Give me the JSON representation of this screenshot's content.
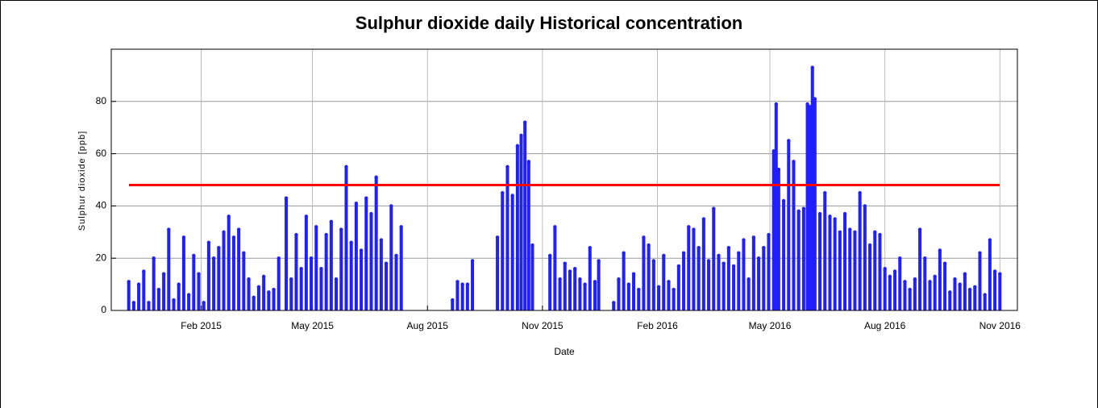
{
  "chart_data": {
    "type": "stem",
    "title": "Sulphur dioxide daily Historical concentration",
    "x_label": "Date",
    "y_label": "Sulphur dioxide  [ppb]",
    "color": "#1f1fff",
    "grid": true,
    "reference_line": {
      "value": 48,
      "color": "#ff0000"
    },
    "xlim": [
      "2014-11-21",
      "2016-11-15"
    ],
    "xticks": [
      {
        "value": "2015-02-01",
        "label": "Feb 2015"
      },
      {
        "value": "2015-05-01",
        "label": "May 2015"
      },
      {
        "value": "2015-08-01",
        "label": "Aug 2015"
      },
      {
        "value": "2015-11-01",
        "label": "Nov 2015"
      },
      {
        "value": "2016-02-01",
        "label": "Feb 2016"
      },
      {
        "value": "2016-05-01",
        "label": "May 2016"
      },
      {
        "value": "2016-08-01",
        "label": "Aug 2016"
      },
      {
        "value": "2016-11-01",
        "label": "Nov 2016"
      }
    ],
    "ylim": [
      0,
      100
    ],
    "yticks": [
      0,
      20,
      40,
      60,
      80
    ],
    "x": [
      "2014-12-05",
      "2014-12-09",
      "2014-12-13",
      "2014-12-17",
      "2014-12-21",
      "2014-12-25",
      "2014-12-29",
      "2015-01-02",
      "2015-01-06",
      "2015-01-10",
      "2015-01-14",
      "2015-01-18",
      "2015-01-22",
      "2015-01-26",
      "2015-01-30",
      "2015-02-03",
      "2015-02-07",
      "2015-02-11",
      "2015-02-15",
      "2015-02-19",
      "2015-02-23",
      "2015-02-27",
      "2015-03-03",
      "2015-03-07",
      "2015-03-11",
      "2015-03-15",
      "2015-03-19",
      "2015-03-23",
      "2015-03-27",
      "2015-03-31",
      "2015-04-04",
      "2015-04-10",
      "2015-04-14",
      "2015-04-18",
      "2015-04-22",
      "2015-04-26",
      "2015-04-30",
      "2015-05-04",
      "2015-05-08",
      "2015-05-12",
      "2015-05-16",
      "2015-05-20",
      "2015-05-24",
      "2015-05-28",
      "2015-06-01",
      "2015-06-05",
      "2015-06-09",
      "2015-06-13",
      "2015-06-17",
      "2015-06-21",
      "2015-06-25",
      "2015-06-29",
      "2015-07-03",
      "2015-07-07",
      "2015-07-11",
      "2015-08-21",
      "2015-08-25",
      "2015-08-29",
      "2015-09-02",
      "2015-09-06",
      "2015-09-26",
      "2015-09-30",
      "2015-10-04",
      "2015-10-08",
      "2015-10-12",
      "2015-10-15",
      "2015-10-18",
      "2015-10-21",
      "2015-10-24",
      "2015-11-07",
      "2015-11-11",
      "2015-11-15",
      "2015-11-19",
      "2015-11-23",
      "2015-11-27",
      "2015-12-01",
      "2015-12-05",
      "2015-12-09",
      "2015-12-13",
      "2015-12-16",
      "2015-12-28",
      "2016-01-01",
      "2016-01-05",
      "2016-01-09",
      "2016-01-13",
      "2016-01-17",
      "2016-01-21",
      "2016-01-25",
      "2016-01-29",
      "2016-02-02",
      "2016-02-06",
      "2016-02-10",
      "2016-02-14",
      "2016-02-18",
      "2016-02-22",
      "2016-02-26",
      "2016-03-01",
      "2016-03-05",
      "2016-03-09",
      "2016-03-13",
      "2016-03-17",
      "2016-03-21",
      "2016-03-25",
      "2016-03-29",
      "2016-04-02",
      "2016-04-06",
      "2016-04-10",
      "2016-04-14",
      "2016-04-18",
      "2016-04-22",
      "2016-04-26",
      "2016-04-30",
      "2016-05-04",
      "2016-05-06",
      "2016-05-08",
      "2016-05-12",
      "2016-05-16",
      "2016-05-20",
      "2016-05-24",
      "2016-05-28",
      "2016-05-31",
      "2016-06-02",
      "2016-06-04",
      "2016-06-06",
      "2016-06-10",
      "2016-06-14",
      "2016-06-18",
      "2016-06-22",
      "2016-06-26",
      "2016-06-30",
      "2016-07-04",
      "2016-07-08",
      "2016-07-12",
      "2016-07-16",
      "2016-07-20",
      "2016-07-24",
      "2016-07-28",
      "2016-08-01",
      "2016-08-05",
      "2016-08-09",
      "2016-08-13",
      "2016-08-17",
      "2016-08-21",
      "2016-08-25",
      "2016-08-29",
      "2016-09-02",
      "2016-09-06",
      "2016-09-10",
      "2016-09-14",
      "2016-09-18",
      "2016-09-22",
      "2016-09-26",
      "2016-09-30",
      "2016-10-04",
      "2016-10-08",
      "2016-10-12",
      "2016-10-16",
      "2016-10-20",
      "2016-10-24",
      "2016-10-28",
      "2016-11-01"
    ],
    "values": [
      11,
      3,
      10,
      15,
      3,
      20,
      8,
      14,
      31,
      4,
      10,
      28,
      6,
      21,
      14,
      3,
      26,
      20,
      24,
      30,
      36,
      28,
      31,
      22,
      12,
      5,
      9,
      13,
      7,
      8,
      20,
      43,
      12,
      29,
      16,
      36,
      20,
      32,
      16,
      29,
      34,
      12,
      31,
      55,
      26,
      41,
      23,
      43,
      37,
      51,
      27,
      18,
      40,
      21,
      32,
      4,
      11,
      10,
      10,
      19,
      28,
      45,
      55,
      44,
      63,
      67,
      72,
      57,
      25,
      21,
      32,
      12,
      18,
      15,
      16,
      12,
      10,
      24,
      11,
      19,
      3,
      12,
      22,
      10,
      14,
      8,
      28,
      25,
      19,
      9,
      21,
      11,
      8,
      17,
      22,
      32,
      31,
      24,
      35,
      19,
      39,
      21,
      18,
      24,
      17,
      22,
      27,
      12,
      28,
      20,
      24,
      29,
      61,
      79,
      54,
      42,
      65,
      57,
      38,
      39,
      79,
      78,
      93,
      81,
      37,
      45,
      36,
      35,
      30,
      37,
      31,
      30,
      45,
      40,
      25,
      30,
      29,
      16,
      13,
      15,
      20,
      11,
      8,
      12,
      31,
      20,
      11,
      13,
      23,
      18,
      7,
      12,
      10,
      14,
      8,
      9,
      22,
      6,
      27,
      15,
      14
    ]
  }
}
